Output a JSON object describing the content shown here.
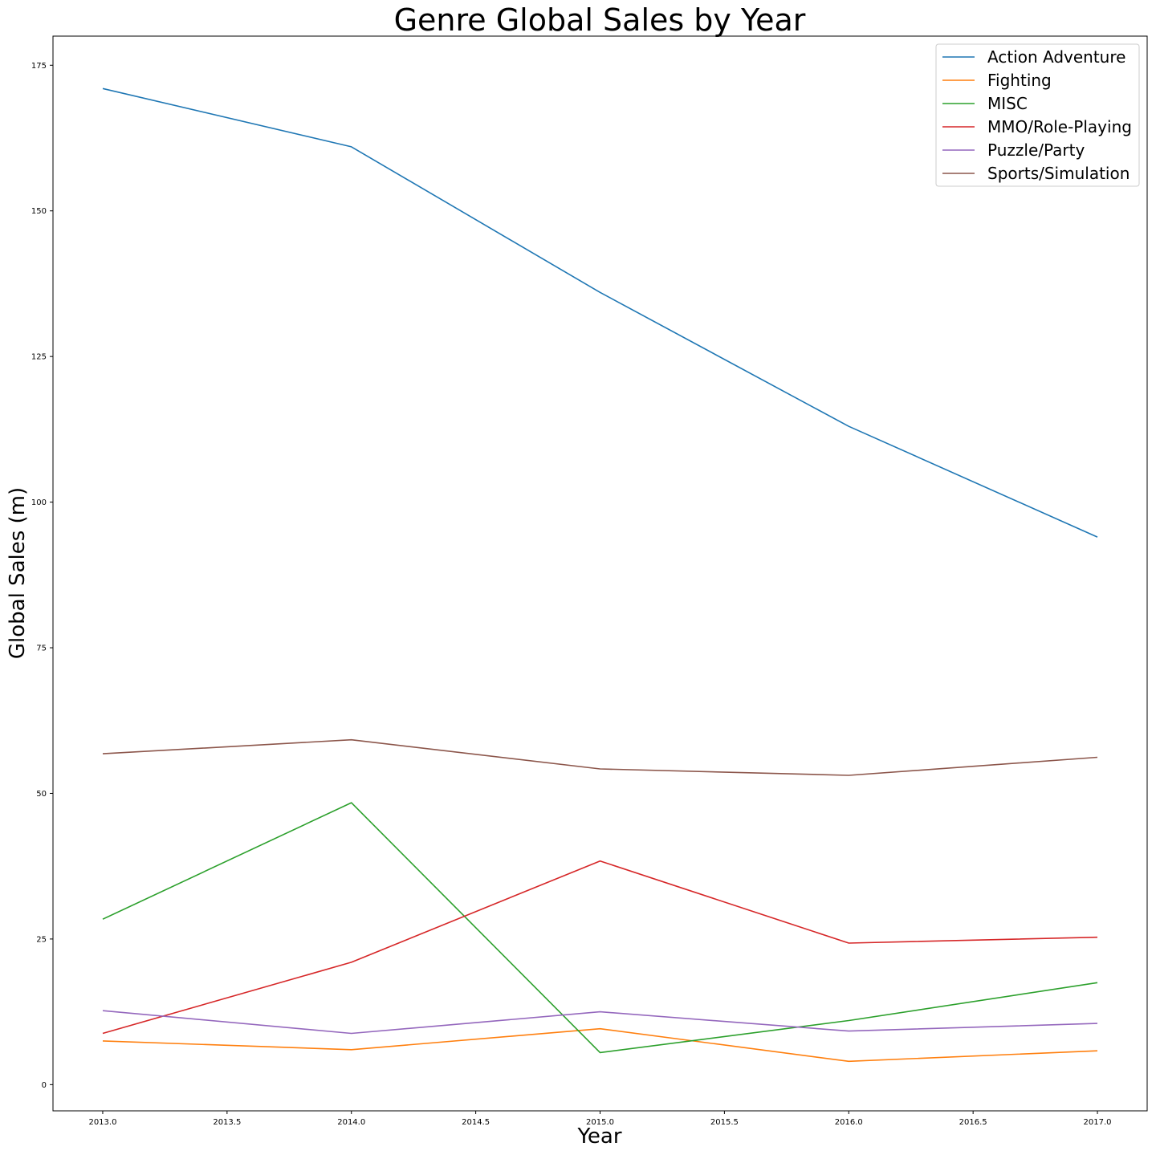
{
  "chart_data": {
    "type": "line",
    "title": "Genre Global Sales by Year",
    "xlabel": "Year",
    "ylabel": "Global Sales (m)",
    "x": [
      2013,
      2014,
      2015,
      2016,
      2017
    ],
    "xlim": [
      2012.8,
      2017.2
    ],
    "ylim": [
      -4.5,
      180
    ],
    "xticks": [
      2013.0,
      2013.5,
      2014.0,
      2014.5,
      2015.0,
      2015.5,
      2016.0,
      2016.5,
      2017.0
    ],
    "xtick_labels": [
      "2013.0",
      "2013.5",
      "2014.0",
      "2014.5",
      "2015.0",
      "2015.5",
      "2016.0",
      "2016.5",
      "2017.0"
    ],
    "yticks": [
      0,
      25,
      50,
      75,
      100,
      125,
      150,
      175
    ],
    "ytick_labels": [
      "0",
      "25",
      "50",
      "75",
      "100",
      "125",
      "150",
      "175"
    ],
    "grid": false,
    "legend_position": "top-right",
    "series": [
      {
        "name": "Action Adventure",
        "color": "#1f77b4",
        "values": [
          171,
          161,
          136,
          113,
          94
        ]
      },
      {
        "name": "Fighting",
        "color": "#ff7f0e",
        "values": [
          7.5,
          6,
          9.6,
          4,
          5.8
        ]
      },
      {
        "name": "MISC",
        "color": "#2ca02c",
        "values": [
          28.4,
          48.4,
          5.5,
          11,
          17.5
        ]
      },
      {
        "name": "MMO/Role-Playing",
        "color": "#d62728",
        "values": [
          8.8,
          21,
          38.4,
          24.3,
          25.3
        ]
      },
      {
        "name": "Puzzle/Party",
        "color": "#9467bd",
        "values": [
          12.7,
          8.8,
          12.5,
          9.2,
          10.5
        ]
      },
      {
        "name": "Sports/Simulation",
        "color": "#8c564b",
        "values": [
          56.8,
          59.2,
          54.2,
          53.1,
          56.2
        ]
      }
    ]
  }
}
